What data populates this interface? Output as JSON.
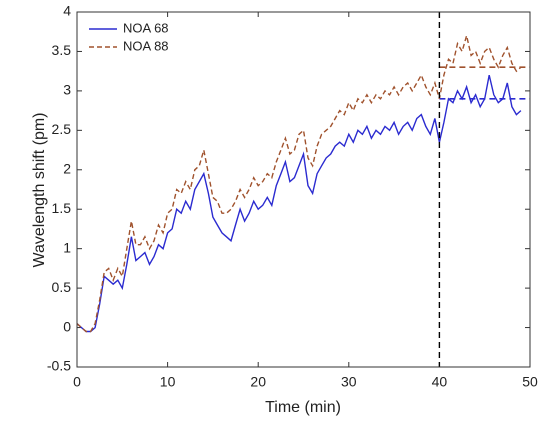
{
  "chart_data": {
    "type": "line",
    "xlabel": "Time (min)",
    "ylabel": "Wavelength shift (pm)",
    "x": [
      0,
      0.5,
      1,
      1.5,
      2,
      2.5,
      3,
      3.5,
      4,
      4.5,
      5,
      5.5,
      6,
      6.5,
      7,
      7.5,
      8,
      8.5,
      9,
      9.5,
      10,
      10.5,
      11,
      11.5,
      12,
      12.5,
      13,
      13.5,
      14,
      14.5,
      15,
      15.5,
      16,
      16.5,
      17,
      17.5,
      18,
      18.5,
      19,
      19.5,
      20,
      20.5,
      21,
      21.5,
      22,
      22.5,
      23,
      23.5,
      24,
      24.5,
      25,
      25.5,
      26,
      26.5,
      27,
      27.5,
      28,
      28.5,
      29,
      29.5,
      30,
      30.5,
      31,
      31.5,
      32,
      32.5,
      33,
      33.5,
      34,
      34.5,
      35,
      35.5,
      36,
      36.5,
      37,
      37.5,
      38,
      38.5,
      39,
      39.5,
      40,
      40.5,
      41,
      41.5,
      42,
      42.5,
      43,
      43.5,
      44,
      44.5,
      45,
      45.5,
      46,
      46.5,
      47,
      47.5,
      48,
      48.5,
      49
    ],
    "series": [
      {
        "name": "NOA 68",
        "color": "#2b2bd0",
        "dash": "solid",
        "plateau": 2.9,
        "values": [
          0.05,
          0,
          -0.05,
          -0.05,
          0,
          0.3,
          0.65,
          0.6,
          0.55,
          0.6,
          0.5,
          0.8,
          1.15,
          0.85,
          0.9,
          0.95,
          0.8,
          0.9,
          1.05,
          1.0,
          1.2,
          1.25,
          1.5,
          1.45,
          1.6,
          1.5,
          1.75,
          1.85,
          1.95,
          1.7,
          1.4,
          1.3,
          1.2,
          1.15,
          1.1,
          1.3,
          1.5,
          1.35,
          1.45,
          1.6,
          1.5,
          1.55,
          1.65,
          1.55,
          1.8,
          1.95,
          2.1,
          1.85,
          1.9,
          2.05,
          2.2,
          1.8,
          1.7,
          1.95,
          2.05,
          2.15,
          2.2,
          2.3,
          2.35,
          2.3,
          2.45,
          2.35,
          2.5,
          2.45,
          2.55,
          2.4,
          2.5,
          2.45,
          2.55,
          2.5,
          2.6,
          2.45,
          2.55,
          2.6,
          2.5,
          2.65,
          2.7,
          2.55,
          2.45,
          2.65,
          2.35,
          2.6,
          2.9,
          2.85,
          3.0,
          2.9,
          3.05,
          2.85,
          2.95,
          2.8,
          2.9,
          3.2,
          2.95,
          2.85,
          2.9,
          3.1,
          2.8,
          2.7,
          2.75
        ]
      },
      {
        "name": "NOA 88",
        "color": "#a0522d",
        "dash": "dashed",
        "plateau": 3.3,
        "values": [
          0.05,
          0,
          -0.05,
          -0.05,
          0.05,
          0.35,
          0.7,
          0.75,
          0.6,
          0.75,
          0.65,
          1.0,
          1.35,
          1.05,
          1.05,
          1.15,
          1.0,
          1.1,
          1.3,
          1.2,
          1.45,
          1.5,
          1.75,
          1.7,
          1.85,
          1.75,
          2.0,
          2.05,
          2.25,
          1.95,
          1.65,
          1.6,
          1.45,
          1.45,
          1.5,
          1.6,
          1.75,
          1.65,
          1.75,
          1.9,
          1.8,
          1.85,
          1.95,
          1.9,
          2.1,
          2.25,
          2.4,
          2.2,
          2.25,
          2.45,
          2.5,
          2.15,
          2.05,
          2.3,
          2.45,
          2.5,
          2.55,
          2.65,
          2.75,
          2.7,
          2.85,
          2.75,
          2.9,
          2.85,
          2.95,
          2.85,
          2.95,
          2.9,
          3.0,
          2.95,
          3.05,
          2.95,
          3.05,
          3.1,
          3.0,
          3.1,
          3.2,
          3.05,
          2.95,
          3.1,
          2.9,
          3.2,
          3.4,
          3.35,
          3.6,
          3.5,
          3.7,
          3.45,
          3.5,
          3.35,
          3.5,
          3.55,
          3.4,
          3.3,
          3.45,
          3.55,
          3.35,
          3.25,
          3.3
        ]
      }
    ],
    "vline": 40,
    "xlim": [
      0,
      50
    ],
    "xticks": [
      0,
      10,
      20,
      30,
      40,
      50
    ],
    "ylim": [
      -0.5,
      4
    ],
    "yticks": [
      -0.5,
      0,
      0.5,
      1,
      1.5,
      2,
      2.5,
      3,
      3.5,
      4
    ],
    "legend": "upper left"
  }
}
